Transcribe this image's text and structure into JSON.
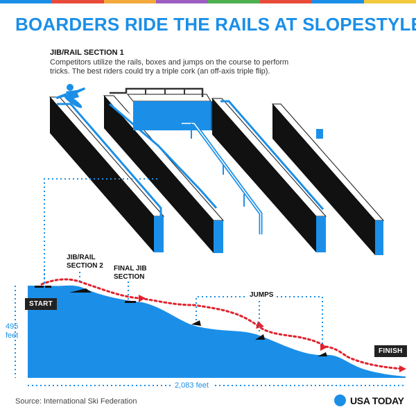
{
  "title": "BOARDERS RIDE THE RAILS AT SLOPESTYLE",
  "section": {
    "heading": "JIB/RAIL SECTION 1",
    "description": "Competitors utilize the rails, boxes and jumps on the course to perform tricks. The best riders could try a triple cork (an off-axis triple flip)."
  },
  "labels": {
    "jib_rail_2": "JIB/RAIL\nSECTION 2",
    "final_jib": "FINAL JIB\nSECTION",
    "jumps": "JUMPS",
    "start": "START",
    "finish": "FINISH"
  },
  "dimensions": {
    "height": "495\nfeet",
    "length": "2,083 feet"
  },
  "source": "Source: International Ski Federation",
  "brand": "USA TODAY",
  "colors": {
    "blue": "#1b8fe8",
    "path_red": "#e0232e",
    "dark": "#111111",
    "stripe": [
      "#1b8fe8",
      "#e84b3a",
      "#f3a93b",
      "#9c5fc1",
      "#4cb050",
      "#e84b3a",
      "#1b8fe8",
      "#f3c93b"
    ]
  }
}
